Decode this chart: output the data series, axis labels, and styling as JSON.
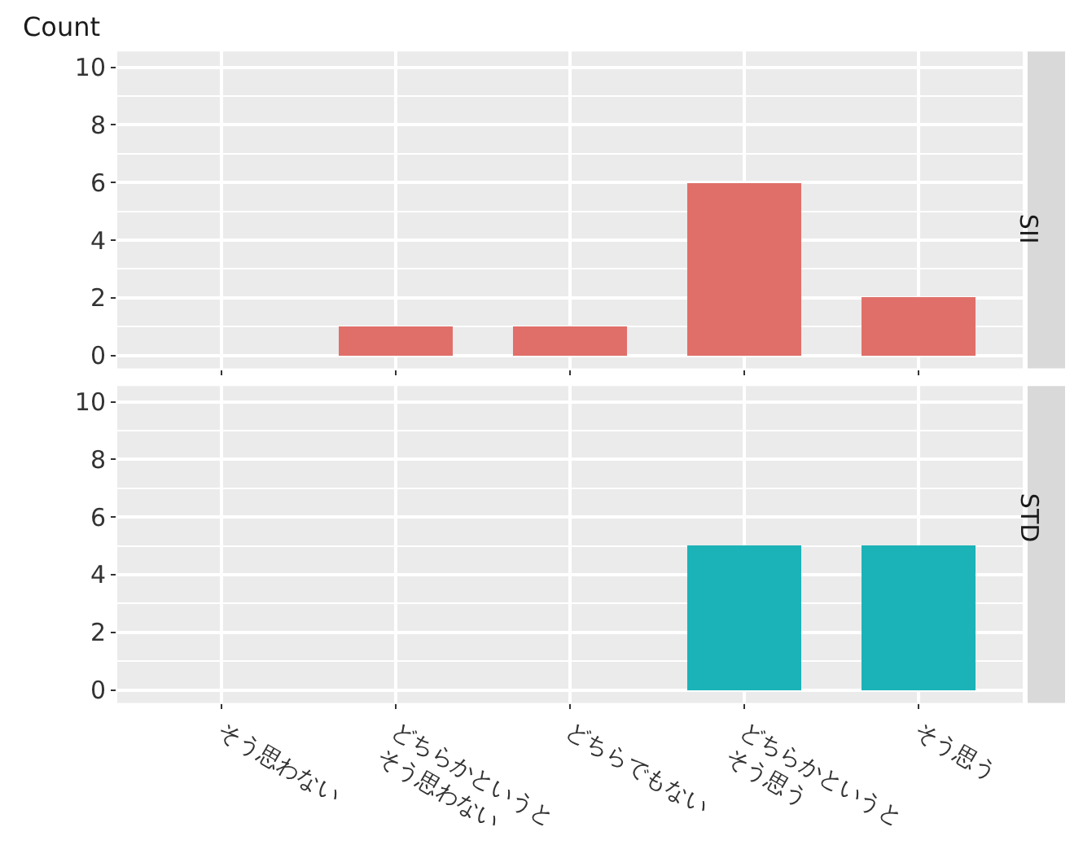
{
  "chart_data": [
    {
      "type": "bar",
      "ylabel": "Count",
      "categories": [
        "そう思わない",
        "どちらかというとそう思わない",
        "どちらでもない",
        "どちらかというとそう思う",
        "そう思う"
      ],
      "values": [
        0,
        1,
        1,
        6,
        2
      ],
      "color": "#e06f69",
      "ylim": [
        -0.45,
        10.55
      ],
      "yticks": [
        0,
        2,
        4,
        6,
        8,
        10
      ],
      "grid": true,
      "tick_labels": "y",
      "annotations": [
        "SII"
      ]
    },
    {
      "type": "bar",
      "categories": [
        "そう思わない",
        "どちらかというとそう思わない",
        "どちらでもない",
        "どちらかというとそう思う",
        "そう思う"
      ],
      "values": [
        0,
        0,
        0,
        5,
        5
      ],
      "color": "#1bb3b8",
      "ylim": [
        -0.45,
        10.55
      ],
      "yticks": [
        0,
        2,
        4,
        6,
        8,
        10
      ],
      "grid": true,
      "annotations": [
        "STD"
      ]
    }
  ]
}
